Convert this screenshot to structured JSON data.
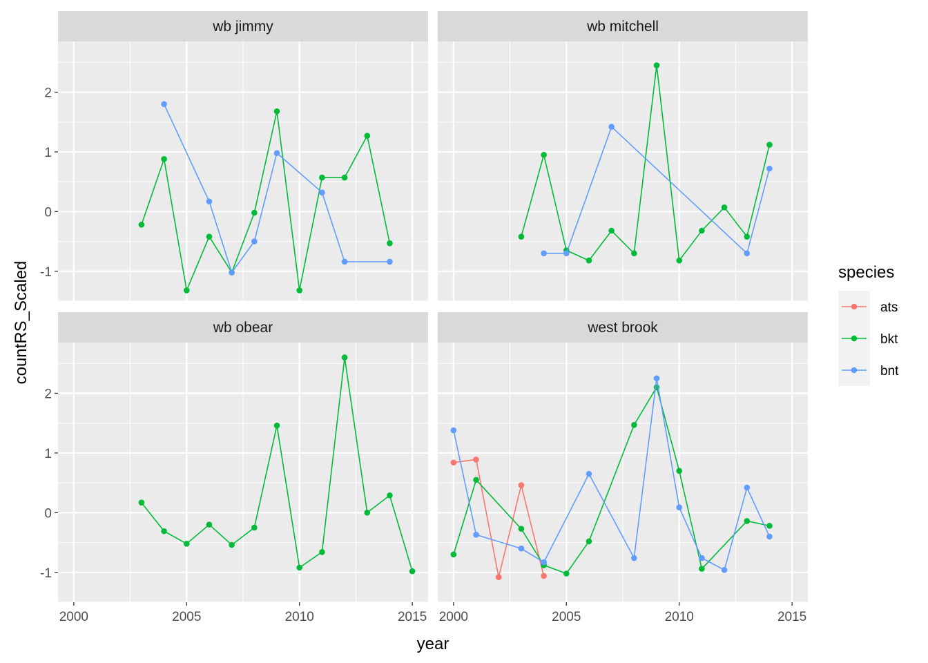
{
  "chart_data": {
    "type": "line",
    "facet_by": "site",
    "xlabel": "year",
    "ylabel": "countRS_Scaled",
    "xlim": [
      1999.3,
      2015.7
    ],
    "ylim": [
      -1.5,
      2.85
    ],
    "x_ticks": [
      2000,
      2005,
      2010,
      2015
    ],
    "y_ticks": [
      -1,
      0,
      1,
      2
    ],
    "grid": true,
    "legend": {
      "title": "species",
      "position": "right",
      "entries": [
        {
          "name": "ats",
          "color": "#F8766D"
        },
        {
          "name": "bkt",
          "color": "#00BA38"
        },
        {
          "name": "bnt",
          "color": "#619CFF"
        }
      ]
    },
    "panels": [
      {
        "title": "wb jimmy",
        "series": [
          {
            "name": "bkt",
            "x": [
              2003,
              2004,
              2005,
              2006,
              2007,
              2008,
              2009,
              2010,
              2011,
              2012,
              2013,
              2014
            ],
            "y": [
              -0.22,
              0.88,
              -1.32,
              -0.42,
              -1.02,
              -0.02,
              1.68,
              -1.32,
              0.57,
              0.57,
              1.27,
              -0.53
            ]
          },
          {
            "name": "bnt",
            "x": [
              2004,
              2006,
              2007,
              2008,
              2009,
              2011,
              2012,
              2014
            ],
            "y": [
              1.8,
              0.17,
              -1.02,
              -0.5,
              0.98,
              0.32,
              -0.84,
              -0.84
            ]
          }
        ]
      },
      {
        "title": "wb mitchell",
        "series": [
          {
            "name": "bkt",
            "x": [
              2003,
              2004,
              2005,
              2006,
              2007,
              2008,
              2009,
              2010,
              2011,
              2012,
              2013,
              2014
            ],
            "y": [
              -0.42,
              0.95,
              -0.65,
              -0.82,
              -0.32,
              -0.7,
              2.45,
              -0.82,
              -0.32,
              0.07,
              -0.42,
              1.12
            ]
          },
          {
            "name": "bnt",
            "x": [
              2004,
              2005,
              2007,
              2013,
              2014
            ],
            "y": [
              -0.7,
              -0.7,
              1.42,
              -0.7,
              0.72
            ]
          }
        ]
      },
      {
        "title": "wb obear",
        "series": [
          {
            "name": "bkt",
            "x": [
              2003,
              2004,
              2005,
              2006,
              2007,
              2008,
              2009,
              2010,
              2011,
              2012,
              2013,
              2014,
              2015
            ],
            "y": [
              0.17,
              -0.31,
              -0.52,
              -0.2,
              -0.54,
              -0.25,
              1.46,
              -0.92,
              -0.66,
              2.6,
              0.0,
              0.29,
              -0.98
            ]
          }
        ]
      },
      {
        "title": "west brook",
        "series": [
          {
            "name": "ats",
            "x": [
              2000,
              2001,
              2002,
              2003,
              2004
            ],
            "y": [
              0.84,
              0.89,
              -1.08,
              0.46,
              -1.06
            ]
          },
          {
            "name": "bkt",
            "x": [
              2000,
              2001,
              2003,
              2004,
              2005,
              2006,
              2008,
              2009,
              2010,
              2011,
              2013,
              2014
            ],
            "y": [
              -0.7,
              0.55,
              -0.27,
              -0.88,
              -1.02,
              -0.48,
              1.47,
              2.1,
              0.7,
              -0.94,
              -0.14,
              -0.22
            ]
          },
          {
            "name": "bnt",
            "x": [
              2000,
              2001,
              2003,
              2004,
              2006,
              2008,
              2009,
              2010,
              2011,
              2012,
              2013,
              2014
            ],
            "y": [
              1.38,
              -0.37,
              -0.6,
              -0.83,
              0.65,
              -0.76,
              2.25,
              0.09,
              -0.76,
              -0.96,
              0.42,
              -0.4
            ]
          }
        ]
      }
    ]
  }
}
